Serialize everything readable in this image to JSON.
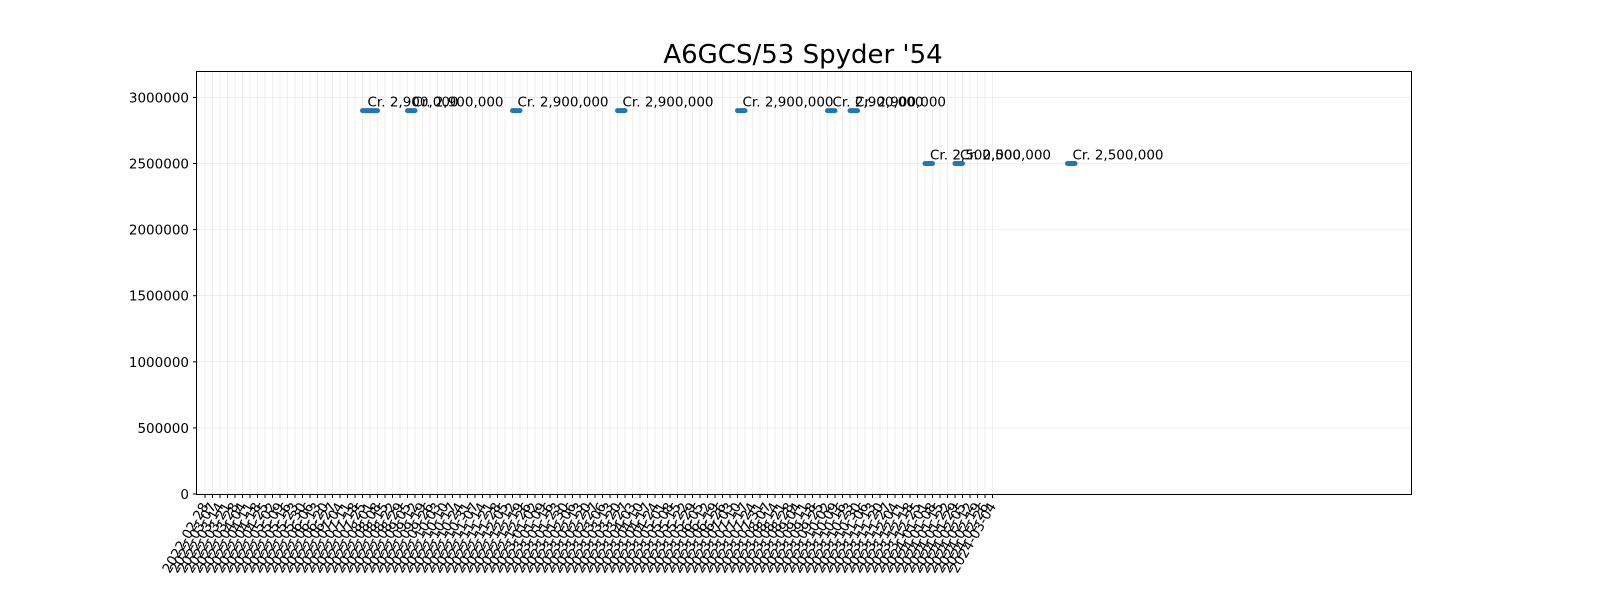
{
  "chart_data": {
    "type": "line",
    "title": "A6GCS/53 Spyder '54",
    "xlabel": "",
    "ylabel": "",
    "ylim": [
      0,
      3200000
    ],
    "y_ticks": [
      0,
      500000,
      1000000,
      1500000,
      2000000,
      2500000,
      3000000
    ],
    "grid": true,
    "x_ticks": [
      "2022-02-28",
      "2022-03-07",
      "2022-03-14",
      "2022-03-21",
      "2022-03-28",
      "2022-04-04",
      "2022-04-11",
      "2022-04-18",
      "2022-04-25",
      "2022-05-02",
      "2022-05-09",
      "2022-05-16",
      "2022-05-23",
      "2022-05-30",
      "2022-06-06",
      "2022-06-13",
      "2022-06-20",
      "2022-06-27",
      "2022-07-04",
      "2022-07-11",
      "2022-07-18",
      "2022-07-25",
      "2022-08-01",
      "2022-08-08",
      "2022-08-15",
      "2022-08-22",
      "2022-08-29",
      "2022-09-05",
      "2022-09-12",
      "2022-09-19",
      "2022-09-26",
      "2022-10-03",
      "2022-10-10",
      "2022-10-17",
      "2022-10-24",
      "2022-10-31",
      "2022-11-07",
      "2022-11-14",
      "2022-11-21",
      "2022-11-28",
      "2022-12-05",
      "2022-12-12",
      "2022-12-19",
      "2022-12-26",
      "2023-01-02",
      "2023-01-09",
      "2023-01-16",
      "2023-01-23",
      "2023-01-30",
      "2023-02-06",
      "2023-02-13",
      "2023-02-20",
      "2023-02-27",
      "2023-03-06",
      "2023-03-13",
      "2023-03-20",
      "2023-03-27",
      "2023-04-03",
      "2023-04-10",
      "2023-04-17",
      "2023-04-24",
      "2023-05-01",
      "2023-05-08",
      "2023-05-15",
      "2023-05-22",
      "2023-05-29",
      "2023-06-05",
      "2023-06-12",
      "2023-06-19",
      "2023-06-26",
      "2023-07-03",
      "2023-07-10",
      "2023-07-17",
      "2023-07-24",
      "2023-07-31",
      "2023-08-07",
      "2023-08-14",
      "2023-08-21",
      "2023-08-28",
      "2023-09-04",
      "2023-09-11",
      "2023-09-18",
      "2023-09-25",
      "2023-10-02",
      "2023-10-09",
      "2023-10-16",
      "2023-10-23",
      "2023-10-30",
      "2023-11-06",
      "2023-11-13",
      "2023-11-20",
      "2023-11-27",
      "2023-12-04",
      "2023-12-11",
      "2023-12-18",
      "2023-12-25",
      "2024-01-01",
      "2024-01-08",
      "2024-01-15",
      "2024-01-22",
      "2024-01-29",
      "2024-02-05",
      "2024-02-12",
      "2024-02-19",
      "2024-02-26",
      "2024-03-04"
    ],
    "series": [
      {
        "color": "#1f77b4",
        "segments": [
          {
            "x": [
              "2022-07-25",
              "2022-08-01",
              "2022-08-08"
            ],
            "y": 2900000,
            "label": "Cr. 2,900,000"
          },
          {
            "x": [
              "2022-09-05",
              "2022-09-12"
            ],
            "y": 2900000,
            "label": "Cr. 2,900,000"
          },
          {
            "x": [
              "2022-12-12",
              "2022-12-19"
            ],
            "y": 2900000,
            "label": "Cr. 2,900,000"
          },
          {
            "x": [
              "2023-03-20",
              "2023-03-27"
            ],
            "y": 2900000,
            "label": "Cr. 2,900,000"
          },
          {
            "x": [
              "2023-07-10",
              "2023-07-17"
            ],
            "y": 2900000,
            "label": "Cr. 2,900,000"
          },
          {
            "x": [
              "2023-10-02",
              "2023-10-09"
            ],
            "y": 2900000,
            "label": "Cr. 2,900,000"
          },
          {
            "x": [
              "2023-10-23",
              "2023-10-30"
            ],
            "y": 2900000,
            "label": "Cr. 2,900,000"
          },
          {
            "x": [
              "2024-01-01",
              "2024-01-08"
            ],
            "y": 2500000,
            "label": "Cr. 2,500,000"
          },
          {
            "x": [
              "2024-01-29",
              "2024-02-05"
            ],
            "y": 2500000,
            "label": "Cr. 2,500,000"
          },
          {
            "x": [
              "2024-05-13",
              "2024-05-20"
            ],
            "y": 2500000,
            "label": "Cr. 2,500,000"
          }
        ]
      }
    ]
  }
}
